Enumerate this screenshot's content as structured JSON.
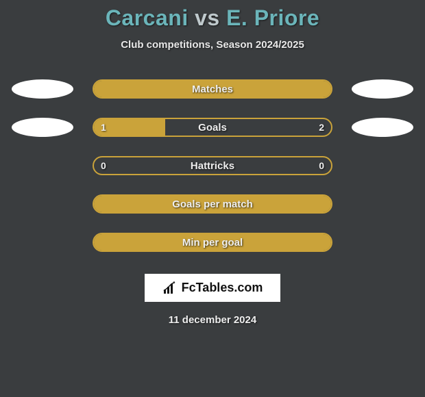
{
  "title": {
    "player1": "Carcani",
    "vs": "vs",
    "player2": "E. Priore"
  },
  "subtitle": "Club competitions, Season 2024/2025",
  "colors": {
    "background": "#3a3d3f",
    "bar_border": "#caa33a",
    "bar_fill": "#caa33a",
    "text_light": "#eeeeee",
    "title_teal": "#6bb5ba",
    "avatar_bg": "#ffffff"
  },
  "rows": [
    {
      "label": "Matches",
      "show_avatars": true,
      "left_val": "",
      "right_val": "",
      "left_pct": 100,
      "right_pct": 0
    },
    {
      "label": "Goals",
      "show_avatars": true,
      "left_val": "1",
      "right_val": "2",
      "left_pct": 30,
      "right_pct": 0
    },
    {
      "label": "Hattricks",
      "show_avatars": false,
      "left_val": "0",
      "right_val": "0",
      "left_pct": 0,
      "right_pct": 0
    },
    {
      "label": "Goals per match",
      "show_avatars": false,
      "left_val": "",
      "right_val": "",
      "left_pct": 100,
      "right_pct": 0
    },
    {
      "label": "Min per goal",
      "show_avatars": false,
      "left_val": "",
      "right_val": "",
      "left_pct": 100,
      "right_pct": 0
    }
  ],
  "brand": "FcTables.com",
  "date": "11 december 2024"
}
